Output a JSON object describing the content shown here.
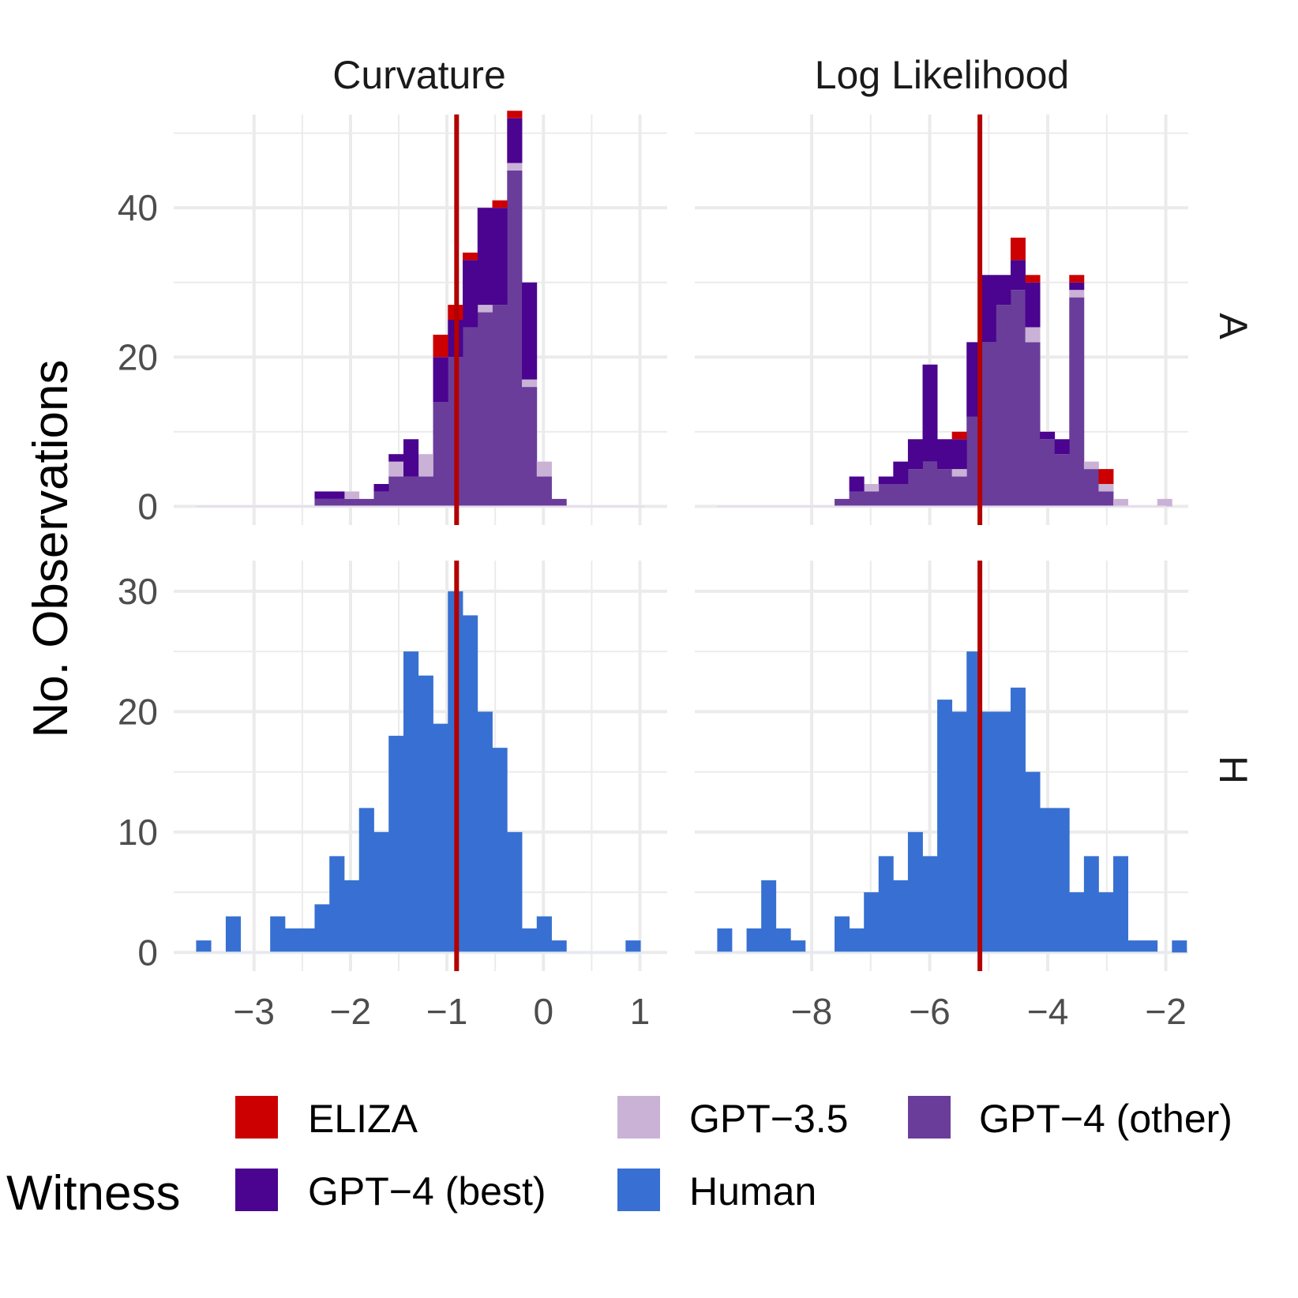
{
  "chart_data": {
    "type": "bar",
    "ylabel": "No. Observations",
    "legend_title": "Witness",
    "legend_position": "bottom",
    "grid": true,
    "threshold_color": "#b30000",
    "series_order": [
      "Human",
      "GPT-4 (other)",
      "GPT-3.5",
      "GPT-4 (best)",
      "ELIZA"
    ],
    "legend": [
      {
        "name": "ELIZA",
        "color": "#cc0000"
      },
      {
        "name": "GPT−3.5",
        "color": "#c9b2d6"
      },
      {
        "name": "GPT−4 (other)",
        "color": "#6a3d9a"
      },
      {
        "name": "GPT−4 (best)",
        "color": "#4a0490"
      },
      {
        "name": "Human",
        "color": "#3770d2"
      }
    ],
    "colors": {
      "ELIZA": "#cc0000",
      "GPT-3.5": "#c9b2d6",
      "GPT-4 (other)": "#6a3d9a",
      "GPT-4 (best)": "#4a0490",
      "Human": "#3770d2"
    },
    "columns": [
      {
        "label": "Curvature",
        "xlim": [
          -3.6,
          1.05
        ],
        "xticks": [
          -3,
          -2,
          -1,
          0,
          1
        ],
        "xtick_labels": [
          "−3",
          "−2",
          "−1",
          "0",
          "1"
        ],
        "threshold": -0.9,
        "bin_start": -3.6,
        "bin_width": 0.1535
      },
      {
        "label": "Log Likelihood",
        "xlim": [
          -9.6,
          -2.0
        ],
        "xticks": [
          -8,
          -6,
          -4,
          -2
        ],
        "xtick_labels": [
          "−8",
          "−6",
          "−4",
          "−2"
        ],
        "threshold": -5.15,
        "bin_start": -9.6,
        "bin_width": 0.2485
      }
    ],
    "rows": [
      {
        "label": "A",
        "ylim": [
          0,
          50
        ],
        "yticks": [
          0,
          20,
          40
        ],
        "ytick_labels": [
          "0",
          "20",
          "40"
        ]
      },
      {
        "label": "H",
        "ylim": [
          0,
          31
        ],
        "yticks": [
          0,
          10,
          20,
          30
        ],
        "ytick_labels": [
          "0",
          "10",
          "20",
          "30"
        ]
      }
    ],
    "panels": [
      {
        "row": "A",
        "column": "Curvature",
        "series": [
          {
            "name": "GPT-4 (other)",
            "values": [
              0,
              0,
              0,
              0,
              0,
              0,
              0,
              0,
              1,
              1,
              1,
              1,
              2,
              4,
              4,
              4,
              14,
              20,
              24,
              26,
              27,
              45,
              16,
              4,
              1,
              0,
              0,
              0,
              0,
              0,
              0
            ]
          },
          {
            "name": "GPT-3.5",
            "values": [
              0,
              0,
              0,
              0,
              0,
              0,
              0,
              0,
              0,
              0,
              1,
              0,
              0,
              2,
              0,
              3,
              0,
              0,
              0,
              1,
              0,
              1,
              1,
              2,
              0,
              0,
              0,
              0,
              0,
              0,
              0
            ]
          },
          {
            "name": "GPT-4 (best)",
            "values": [
              0,
              0,
              0,
              0,
              0,
              0,
              0,
              0,
              1,
              1,
              0,
              0,
              1,
              1,
              5,
              0,
              6,
              5,
              9,
              13,
              13,
              6,
              13,
              0,
              0,
              0,
              0,
              0,
              0,
              0,
              0
            ]
          },
          {
            "name": "ELIZA",
            "values": [
              0,
              0,
              0,
              0,
              0,
              0,
              0,
              0,
              0,
              0,
              0,
              0,
              0,
              0,
              0,
              0,
              3,
              2,
              1,
              0,
              1,
              1,
              0,
              0,
              0,
              0,
              0,
              0,
              0,
              0,
              0
            ]
          }
        ]
      },
      {
        "row": "A",
        "column": "Log Likelihood",
        "series": [
          {
            "name": "GPT-4 (other)",
            "values": [
              0,
              0,
              0,
              0,
              0,
              0,
              0,
              0,
              1,
              2,
              2,
              3,
              3,
              5,
              6,
              5,
              4,
              12,
              22,
              27,
              29,
              22,
              9,
              7,
              28,
              5,
              2,
              0,
              0,
              0,
              0
            ]
          },
          {
            "name": "GPT-3.5",
            "values": [
              0,
              0,
              0,
              0,
              0,
              0,
              0,
              0,
              0,
              0,
              1,
              0,
              0,
              0,
              0,
              0,
              1,
              0,
              0,
              0,
              0,
              2,
              0,
              0,
              1,
              1,
              1,
              1,
              0,
              0,
              1
            ]
          },
          {
            "name": "GPT-4 (best)",
            "values": [
              0,
              0,
              0,
              0,
              0,
              0,
              0,
              0,
              0,
              2,
              0,
              1,
              3,
              4,
              13,
              4,
              4,
              10,
              9,
              4,
              4,
              6,
              1,
              2,
              1,
              0,
              0,
              0,
              0,
              0,
              0
            ]
          },
          {
            "name": "ELIZA",
            "values": [
              0,
              0,
              0,
              0,
              0,
              0,
              0,
              0,
              0,
              0,
              0,
              0,
              0,
              0,
              0,
              0,
              1,
              0,
              0,
              0,
              3,
              1,
              0,
              0,
              1,
              0,
              2,
              0,
              0,
              0,
              0
            ]
          }
        ]
      },
      {
        "row": "H",
        "column": "Curvature",
        "series": [
          {
            "name": "Human",
            "values": [
              1,
              0,
              3,
              0,
              0,
              3,
              2,
              2,
              4,
              8,
              6,
              12,
              10,
              18,
              25,
              23,
              19,
              30,
              28,
              20,
              17,
              10,
              2,
              3,
              1,
              0,
              0,
              0,
              0,
              1
            ]
          }
        ]
      },
      {
        "row": "H",
        "column": "Log Likelihood",
        "series": [
          {
            "name": "Human",
            "values": [
              2,
              0,
              2,
              6,
              2,
              1,
              0,
              0,
              3,
              2,
              5,
              8,
              6,
              10,
              8,
              21,
              20,
              25,
              20,
              20,
              22,
              15,
              12,
              12,
              5,
              8,
              5,
              8,
              1,
              1,
              0,
              1
            ]
          }
        ]
      }
    ]
  }
}
